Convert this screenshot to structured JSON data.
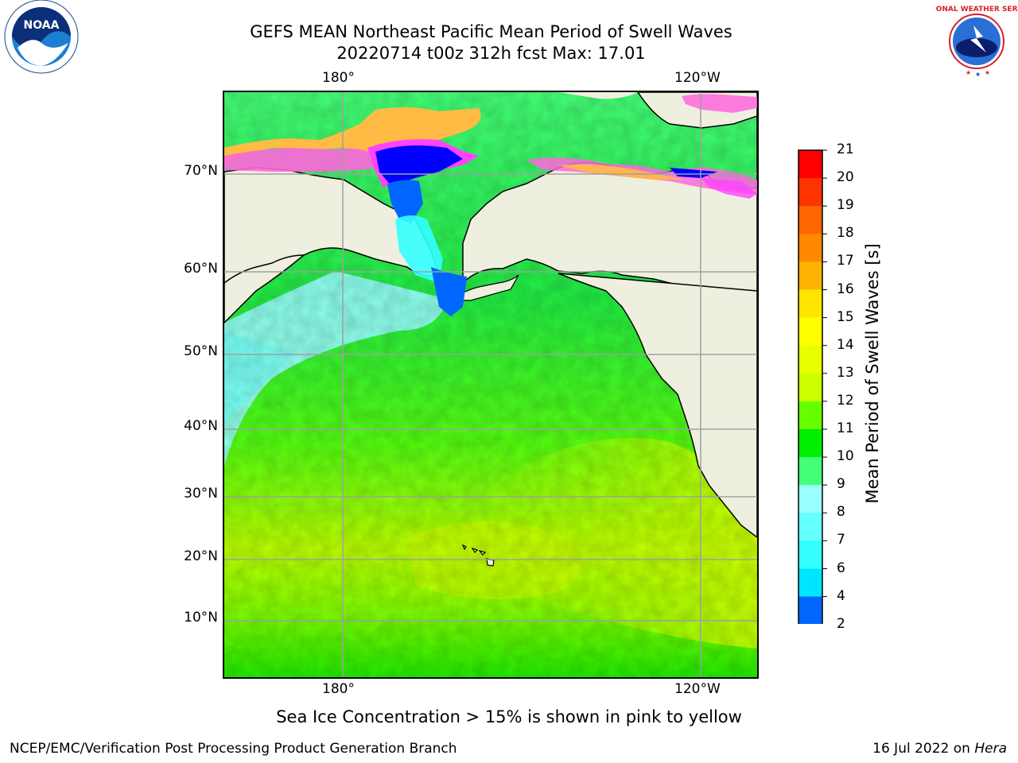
{
  "title": {
    "line1": "GEFS MEAN Northeast Pacific Mean Period of Swell Waves",
    "line2": "20220714 t00z 312h fcst   Max: 17.01"
  },
  "logos": {
    "left": "NOAA",
    "left_ring_text": "NATIONAL OCEANIC AND ATMOSPHERIC ADMINISTRATION",
    "left_bottom_text": "U.S. DEPARTMENT OF COMMERCE",
    "right_ring_text": "NATIONAL WEATHER SERVICE"
  },
  "axes": {
    "top_lon_labels": [
      "180°",
      "120°W"
    ],
    "bottom_lon_labels": [
      "180°",
      "120°W"
    ],
    "lat_labels": [
      "70°N",
      "60°N",
      "50°N",
      "40°N",
      "30°N",
      "20°N",
      "10°N"
    ]
  },
  "colorbar": {
    "label": "Mean Period of Swell Waves [s]",
    "ticks": [
      "2",
      "4",
      "6",
      "7",
      "8",
      "9",
      "10",
      "11",
      "12",
      "13",
      "14",
      "15",
      "16",
      "17",
      "18",
      "19",
      "20",
      "21"
    ],
    "bins": [
      {
        "from": 2,
        "to": 4,
        "color": "#0066ff"
      },
      {
        "from": 4,
        "to": 6,
        "color": "#00e5ff"
      },
      {
        "from": 6,
        "to": 7,
        "color": "#33ffff"
      },
      {
        "from": 7,
        "to": 8,
        "color": "#66ffff"
      },
      {
        "from": 8,
        "to": 9,
        "color": "#99ffff"
      },
      {
        "from": 9,
        "to": 10,
        "color": "#44ff77"
      },
      {
        "from": 10,
        "to": 11,
        "color": "#00ee00"
      },
      {
        "from": 11,
        "to": 12,
        "color": "#66ff00"
      },
      {
        "from": 12,
        "to": 13,
        "color": "#ccff00"
      },
      {
        "from": 13,
        "to": 14,
        "color": "#e8ff00"
      },
      {
        "from": 14,
        "to": 15,
        "color": "#ffff00"
      },
      {
        "from": 15,
        "to": 16,
        "color": "#ffe600"
      },
      {
        "from": 16,
        "to": 17,
        "color": "#ffb300"
      },
      {
        "from": 17,
        "to": 18,
        "color": "#ff8800"
      },
      {
        "from": 18,
        "to": 19,
        "color": "#ff6600"
      },
      {
        "from": 19,
        "to": 20,
        "color": "#ff3300"
      },
      {
        "from": 20,
        "to": 21,
        "color": "#ff0000"
      }
    ],
    "under_color": "#0000ff"
  },
  "footnote": "Sea Ice Concentration > 15% is shown in pink to yellow",
  "credit": "NCEP/EMC/Verification Post Processing Product Generation Branch",
  "date": {
    "text": "16 Jul 2022 on ",
    "host": "Hera"
  }
}
